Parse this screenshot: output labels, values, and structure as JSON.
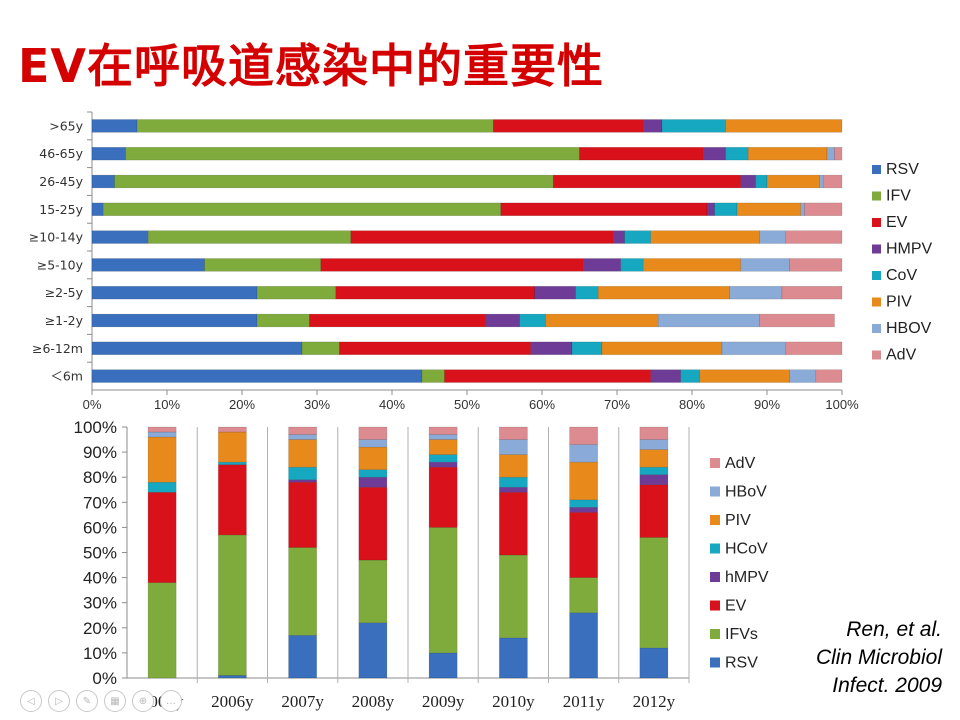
{
  "title": "EV在呼吸道感染中的重要性",
  "colors": {
    "title": "#d40000",
    "RSV": "#3a6fbd",
    "IFV": "#7faa3c",
    "EV": "#d8111a",
    "HMPV": "#6e3b96",
    "CoV": "#15a8c0",
    "PIV": "#e8891b",
    "HBOV": "#8aaad8",
    "AdV": "#dc8c90"
  },
  "citation": {
    "line1": "Ren, et al.",
    "line2": "Clin  Microbiol",
    "line3": "Infect. 2009"
  },
  "nav_icons": [
    "prev-icon",
    "next-icon",
    "pen-icon",
    "grid-icon",
    "zoom-icon",
    "more-icon"
  ],
  "chart_data": [
    {
      "type": "bar",
      "orientation": "horizontal",
      "stacked": true,
      "title": "",
      "xlabel": "",
      "ylabel": "",
      "categories": [
        ">65y",
        "46-65y",
        "26-45y",
        "15-25y",
        "≥10-14y",
        "≥5-10y",
        "≥2-5y",
        "≥1-2y",
        "≥6-12m",
        "＜6m"
      ],
      "xlim": [
        0,
        100
      ],
      "x_ticks": [
        "0%",
        "10%",
        "20%",
        "30%",
        "40%",
        "50%",
        "60%",
        "70%",
        "80%",
        "90%",
        "100%"
      ],
      "legend_position": "right",
      "series": [
        {
          "name": "RSV",
          "color_key": "RSV",
          "values": [
            6,
            4.5,
            3,
            1.5,
            7.5,
            15,
            22,
            22,
            28,
            44
          ]
        },
        {
          "name": "IFV",
          "color_key": "IFV",
          "values": [
            47.5,
            60.5,
            58.5,
            53,
            27,
            15.5,
            10.5,
            7,
            5,
            3
          ]
        },
        {
          "name": "EV",
          "color_key": "EV",
          "values": [
            20,
            16.5,
            25,
            27.5,
            35,
            35,
            26.5,
            23.5,
            25.5,
            27.5
          ]
        },
        {
          "name": "HMPV",
          "color_key": "HMPV",
          "values": [
            2.5,
            3,
            2,
            1,
            1.5,
            5,
            5.5,
            4.5,
            5.5,
            4
          ]
        },
        {
          "name": "CoV",
          "color_key": "CoV",
          "values": [
            8.5,
            3,
            1.5,
            3,
            3.5,
            3,
            3,
            3.5,
            4,
            2.5
          ]
        },
        {
          "name": "PIV",
          "color_key": "PIV",
          "values": [
            15.5,
            10.5,
            7,
            8.5,
            14.5,
            13,
            17.5,
            15,
            16,
            12
          ]
        },
        {
          "name": "HBOV",
          "color_key": "HBOV",
          "values": [
            0,
            1,
            0.5,
            0.5,
            3.5,
            6.5,
            7,
            13.5,
            8.5,
            3.5
          ]
        },
        {
          "name": "AdV",
          "color_key": "AdV",
          "values": [
            0,
            1,
            2.5,
            5,
            7.5,
            7,
            8,
            10,
            7.5,
            3.5
          ]
        }
      ]
    },
    {
      "type": "bar",
      "orientation": "vertical",
      "stacked": true,
      "title": "",
      "xlabel": "",
      "ylabel": "",
      "categories": [
        "2005y",
        "2006y",
        "2007y",
        "2008y",
        "2009y",
        "2010y",
        "2011y",
        "2012y"
      ],
      "ylim": [
        0,
        100
      ],
      "y_ticks": [
        "0%",
        "10%",
        "20%",
        "30%",
        "40%",
        "50%",
        "60%",
        "70%",
        "80%",
        "90%",
        "100%"
      ],
      "legend_position": "right",
      "series": [
        {
          "name": "RSV",
          "color_key": "RSV",
          "values": [
            0,
            1,
            17,
            22,
            10,
            16,
            26,
            12
          ]
        },
        {
          "name": "IFVs",
          "color_key": "IFV",
          "values": [
            38,
            56,
            35,
            25,
            50,
            33,
            14,
            44
          ]
        },
        {
          "name": "EV",
          "color_key": "EV",
          "values": [
            36,
            28,
            26,
            29,
            24,
            25,
            26,
            21
          ]
        },
        {
          "name": "hMPV",
          "color_key": "HMPV",
          "values": [
            0,
            0,
            1,
            4,
            2,
            2,
            2,
            4
          ]
        },
        {
          "name": "HCoV",
          "color_key": "CoV",
          "values": [
            4,
            1,
            5,
            3,
            3,
            4,
            3,
            3
          ]
        },
        {
          "name": "PIV",
          "color_key": "PIV",
          "values": [
            18,
            12,
            11,
            9,
            6,
            9,
            15,
            7
          ]
        },
        {
          "name": "HBoV",
          "color_key": "HBOV",
          "values": [
            2,
            0,
            2,
            3,
            2,
            6,
            7,
            4
          ]
        },
        {
          "name": "AdV",
          "color_key": "AdV",
          "values": [
            2,
            2,
            3,
            5,
            3,
            5,
            7,
            5
          ]
        }
      ]
    }
  ]
}
